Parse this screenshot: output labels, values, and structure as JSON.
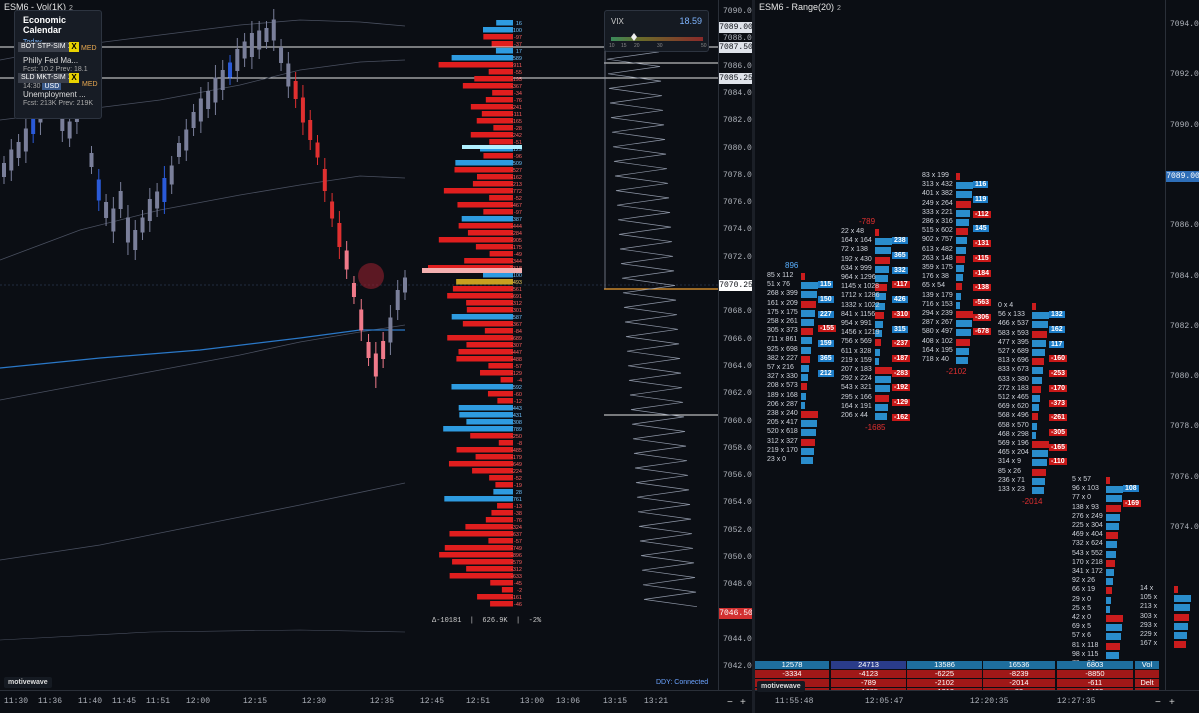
{
  "left_chart": {
    "title": "ESM6 - Vol(1K)",
    "title_sub": "2",
    "price_ticks": [
      "7090.00",
      "7088.00",
      "7086.00",
      "7084.00",
      "7082.00",
      "7080.00",
      "7078.00",
      "7076.00",
      "7074.00",
      "7072.00",
      "7070.00",
      "7068.00",
      "7066.00",
      "7064.00",
      "7062.00",
      "7060.00",
      "7058.00",
      "7056.00",
      "7054.00",
      "7052.00",
      "7050.00",
      "7048.00",
      "7046.00",
      "7044.00",
      "7042.00"
    ],
    "price_labels": [
      {
        "text": "7089.00",
        "bg": "#dfe3ea",
        "fg": "#0b0e14"
      },
      {
        "text": "7087.50",
        "bg": "#dfe3ea",
        "fg": "#0b0e14"
      },
      {
        "text": "7085.25",
        "bg": "#dfe3ea",
        "fg": "#0b0e14"
      },
      {
        "text": "7070.25",
        "bg": "#ffffff",
        "fg": "#0b0e14"
      },
      {
        "text": "7046.50",
        "bg": "#d23030",
        "fg": "#ffffff"
      }
    ],
    "time_ticks": [
      "11:30",
      "11:36",
      "11:40",
      "11:45",
      "11:51",
      "12:00",
      "12:15",
      "12:30",
      "12:35",
      "12:45",
      "12:51",
      "13:00",
      "13:06",
      "13:15",
      "13:21"
    ],
    "logo": "motivewave",
    "stats_bar": {
      "delta": "Δ-10181",
      "volume": "626.9K",
      "pct": "-2%"
    },
    "connection": "DDY: Connected",
    "nav_minus": "−",
    "nav_plus": "+",
    "nav_pin": "⊣"
  },
  "economic_calendar": {
    "title": "Economic Calendar",
    "today": "Today",
    "events": [
      {
        "name": "Philly Fed Ma...",
        "detail": "Fcst: 10.2   Prev: 18.1"
      },
      {
        "name": "Unemployment ...",
        "time": "14:30",
        "country": "USD",
        "detail": "Fcst: 213K   Prev: 219K"
      }
    ],
    "impact": "MED"
  },
  "orders": [
    {
      "label": "BOT STP-SIM 1",
      "close": "X"
    },
    {
      "label": "SLD MKT-SIM 1",
      "close": "X"
    }
  ],
  "vix": {
    "label": "VIX",
    "value": "18.59",
    "scale": [
      "10",
      "15",
      "20",
      "30",
      "50"
    ]
  },
  "volume_profile": {
    "bid_ask_rows": [
      {
        "v": "16",
        "c": "b"
      },
      {
        "v": "100",
        "c": "b"
      },
      {
        "v": "-97",
        "c": "r"
      },
      {
        "v": "-37",
        "c": "r"
      },
      {
        "v": "17",
        "c": "b"
      },
      {
        "v": "589",
        "c": "b"
      },
      {
        "v": "-911",
        "c": "r"
      },
      {
        "v": "-55",
        "c": "r"
      },
      {
        "v": "-195",
        "c": "r"
      },
      {
        "v": "-367",
        "c": "r"
      },
      {
        "v": "-34",
        "c": "r"
      },
      {
        "v": "-76",
        "c": "r"
      },
      {
        "v": "-241",
        "c": "r"
      },
      {
        "v": "-111",
        "c": "r"
      },
      {
        "v": "-165",
        "c": "r"
      },
      {
        "v": "-28",
        "c": "r"
      },
      {
        "v": "-242",
        "c": "r"
      },
      {
        "v": "-51",
        "c": "r"
      },
      {
        "v": "129",
        "c": "b"
      },
      {
        "v": "-96",
        "c": "r"
      },
      {
        "v": "509",
        "c": "b"
      },
      {
        "v": "-527",
        "c": "r"
      },
      {
        "v": "-162",
        "c": "r"
      },
      {
        "v": "-213",
        "c": "r"
      },
      {
        "v": "-772",
        "c": "r"
      },
      {
        "v": "-52",
        "c": "r"
      },
      {
        "v": "-467",
        "c": "r"
      },
      {
        "v": "-97",
        "c": "r"
      },
      {
        "v": "387",
        "c": "b"
      },
      {
        "v": "-444",
        "c": "r"
      },
      {
        "v": "-284",
        "c": "r"
      },
      {
        "v": "-905",
        "c": "r"
      },
      {
        "v": "-175",
        "c": "r"
      },
      {
        "v": "-49",
        "c": "r"
      },
      {
        "v": "-344",
        "c": "r"
      },
      {
        "v": "-2318",
        "c": "r"
      },
      {
        "v": "100",
        "c": "b"
      },
      {
        "v": "493",
        "c": "y"
      },
      {
        "v": "-561",
        "c": "r"
      },
      {
        "v": "-691",
        "c": "r"
      },
      {
        "v": "-312",
        "c": "r"
      },
      {
        "v": "-301",
        "c": "r"
      },
      {
        "v": "587",
        "c": "b"
      },
      {
        "v": "-367",
        "c": "r"
      },
      {
        "v": "-84",
        "c": "r"
      },
      {
        "v": "-689",
        "c": "r"
      },
      {
        "v": "-307",
        "c": "r"
      },
      {
        "v": "-447",
        "c": "r"
      },
      {
        "v": "-488",
        "c": "r"
      },
      {
        "v": "-57",
        "c": "r"
      },
      {
        "v": "-129",
        "c": "r"
      },
      {
        "v": "-4",
        "c": "r"
      },
      {
        "v": "592",
        "c": "b"
      },
      {
        "v": "-60",
        "c": "r"
      },
      {
        "v": "-12",
        "c": "r"
      },
      {
        "v": "443",
        "c": "b"
      },
      {
        "v": "431",
        "c": "b"
      },
      {
        "v": "308",
        "c": "b"
      },
      {
        "v": "789",
        "c": "b"
      },
      {
        "v": "-250",
        "c": "r"
      },
      {
        "v": "-8",
        "c": "r"
      },
      {
        "v": "-485",
        "c": "r"
      },
      {
        "v": "-179",
        "c": "r"
      },
      {
        "v": "-649",
        "c": "r"
      },
      {
        "v": "-224",
        "c": "r"
      },
      {
        "v": "-52",
        "c": "r"
      },
      {
        "v": "-19",
        "c": "r"
      },
      {
        "v": "28",
        "c": "b"
      },
      {
        "v": "761",
        "c": "b"
      },
      {
        "v": "-13",
        "c": "r"
      },
      {
        "v": "-38",
        "c": "r"
      },
      {
        "v": "-76",
        "c": "r"
      },
      {
        "v": "-324",
        "c": "r"
      },
      {
        "v": "-637",
        "c": "r"
      },
      {
        "v": "-57",
        "c": "r"
      },
      {
        "v": "-749",
        "c": "r"
      },
      {
        "v": "-896",
        "c": "r"
      },
      {
        "v": "-579",
        "c": "r"
      },
      {
        "v": "-312",
        "c": "r"
      },
      {
        "v": "-633",
        "c": "r"
      },
      {
        "v": "-45",
        "c": "r"
      },
      {
        "v": "-2",
        "c": "r"
      },
      {
        "v": "-161",
        "c": "r"
      },
      {
        "v": "-46",
        "c": "r"
      }
    ]
  },
  "right_chart": {
    "title": "ESM6 - Range(20)",
    "title_sub": "2",
    "price_ticks": [
      "7094.00",
      "7092.00",
      "7090.00",
      "7088.00",
      "7086.00",
      "7084.00",
      "7082.00",
      "7080.00",
      "7078.00",
      "7076.00",
      "7074.00"
    ],
    "current_price": "7089.00",
    "time_ticks": [
      "11:55:48",
      "12:05:47",
      "12:20:35",
      "12:27:35"
    ],
    "logo": "motivewave",
    "columns": [
      {
        "header_delta": "896",
        "rows": [
          "85 x 112",
          "51 x 76",
          "268 x 399",
          "161 x 209",
          "175 x 175",
          "258 x 261",
          "305 x 373",
          "711 x 861",
          "925 x 698",
          "382 x 227",
          "57 x 216",
          "327 x 330",
          "208 x 573",
          "189 x 168",
          "206 x 287",
          "238 x 240",
          "205 x 417",
          "520 x 618",
          "312 x 327",
          "219 x 170",
          "23 x 0"
        ],
        "bars": [
          "115",
          "150",
          "227",
          "-155",
          "159",
          "365",
          "212"
        ]
      },
      {
        "header_delta": "-789",
        "rows": [
          "22 x 48",
          "164 x 164",
          "72 x 138",
          "192 x 430",
          "634 x 999",
          "964 x 1296",
          "1145 x 1028",
          "1712 x 1286",
          "1332 x 1022",
          "841 x 1156",
          "954 x 991",
          "1456 x 1219",
          "756 x 569",
          "611 x 328",
          "219 x 159",
          "207 x 183",
          "292 x 224",
          "543 x 321",
          "295 x 166",
          "164 x 191",
          "206 x 44"
        ],
        "bars": [
          "238",
          "365",
          "332",
          "-117",
          "426",
          "-310",
          "315",
          "-237",
          "-187",
          "-283",
          "-192",
          "-129",
          "-162"
        ],
        "footer_delta": "-1685"
      },
      {
        "header_delta": "",
        "rows": [
          "83 x 199",
          "313 x 432",
          "401 x 382",
          "249 x 264",
          "333 x 221",
          "286 x 316",
          "515 x 602",
          "902 x 757",
          "613 x 482",
          "263 x 148",
          "359 x 175",
          "176 x 38",
          "65 x 54",
          "139 x 179",
          "716 x 153",
          "294 x 239",
          "287 x 267",
          "580 x 497",
          "408 x 102",
          "164 x 195",
          "718 x 40"
        ],
        "bars": [
          "116",
          "119",
          "-112",
          "145",
          "-131",
          "-115",
          "-184",
          "-138",
          "-563",
          "-306",
          "-678"
        ],
        "footer_delta": "-2102"
      },
      {
        "header_delta": "",
        "rows": [
          "0 x 4",
          "56 x 133",
          "466 x 537",
          "583 x 593",
          "477 x 395",
          "527 x 689",
          "813 x 696",
          "833 x 673",
          "633 x 380",
          "272 x 183",
          "512 x 465",
          "669 x 620",
          "568 x 496",
          "658 x 570",
          "468 x 298",
          "569 x 196",
          "465 x 204",
          "314 x 9",
          "85 x 26",
          "236 x 71",
          "133 x 23"
        ],
        "bars": [
          "132",
          "162",
          "117",
          "-160",
          "-253",
          "-170",
          "-373",
          "-261",
          "-305",
          "-165",
          "-110"
        ],
        "footer_delta": "-2014"
      },
      {
        "header_delta": "",
        "rows": [
          "5 x 57",
          "96 x 103",
          "77 x 0",
          "138 x 93",
          "276 x 249",
          "225 x 304",
          "469 x 404",
          "732 x 624",
          "543 x 552",
          "170 x 218",
          "341 x 172",
          "92 x 26",
          "66 x 19",
          "29 x 0",
          "25 x 5",
          "42 x 0",
          "69 x 5",
          "57 x 6",
          "81 x 118",
          "98 x 115",
          "79 x 26"
        ],
        "bars": [
          "108",
          "-169"
        ],
        "footer_delta": "-611"
      },
      {
        "header_delta": "",
        "rows": [
          "14 x",
          "105 x",
          "213 x",
          "303 x",
          "293 x",
          "229 x",
          "167 x"
        ],
        "bars": []
      }
    ],
    "summary": [
      {
        "cells": [
          "12578",
          "24713",
          "13586",
          "16536",
          "6803",
          "Vol"
        ],
        "color": "#1e6e9e"
      },
      {
        "cells": [
          "-3334",
          "-4123",
          "-6225",
          "-8239",
          "-8850",
          ""
        ],
        "color": "#a01818"
      },
      {
        "cells": [
          "-",
          "-789",
          "-2102",
          "-2014",
          "-611",
          "Delt"
        ],
        "color": "#a01818"
      },
      {
        "cells": [
          "",
          "-1685",
          "-1313",
          "88",
          "1403",
          ""
        ],
        "color": "#a01818"
      }
    ],
    "nav_minus": "−",
    "nav_plus": "+"
  },
  "colors": {
    "bid": "#e01e1e",
    "ask": "#2e9be0",
    "bg": "#0b0e14",
    "candle_up": "#6a6f8a",
    "accent": "#f0a030"
  }
}
